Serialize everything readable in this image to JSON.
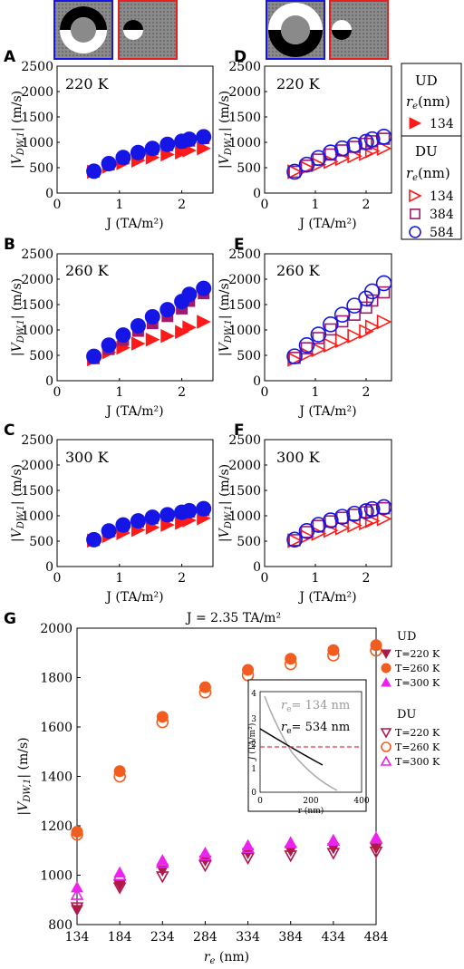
{
  "figure": {
    "panels": [
      {
        "letter": "A",
        "temp": "220 K"
      },
      {
        "letter": "B",
        "temp": "260 K"
      },
      {
        "letter": "C",
        "temp": "300 K"
      },
      {
        "letter": "D",
        "temp": "220 K"
      },
      {
        "letter": "E",
        "temp": "260 K"
      },
      {
        "letter": "F",
        "temp": "300 K"
      },
      {
        "letter": "G"
      }
    ],
    "small_xlabel": "J (TA/m²)",
    "small_ylabel": "|V_DW,1| (m/s)",
    "small_yticks": [
      "0",
      "500",
      "1000",
      "1500",
      "2000",
      "2500"
    ],
    "small_xticks": [
      "0",
      "1",
      "2"
    ],
    "legend_ud": {
      "title": "UD",
      "subtitle": "r_e(nm)",
      "items": [
        "134",
        "384",
        "584"
      ]
    },
    "legend_du": {
      "title": "DU",
      "subtitle": "r_e(nm)",
      "items": [
        "134",
        "384",
        "584"
      ]
    },
    "g_title": "J = 2.35 TA/m²",
    "g_xlabel": "r_e (nm)",
    "g_ylabel": "|V_DW,1| (m/s)",
    "g_legend_ud": {
      "title": "UD",
      "items": [
        "T=220 K",
        "T=260 K",
        "T=300 K"
      ]
    },
    "g_legend_du": {
      "title": "DU",
      "items": [
        "T=220 K",
        "T=260 K",
        "T=300 K"
      ]
    },
    "inset": {
      "line1": "r_e= 134 nm",
      "line2": "r_e= 534 nm",
      "xlabel": "r (nm)",
      "ylabel": "J (TA/m²)"
    }
  },
  "colors": {
    "red": "#ff1a1a",
    "purple": "#a01a6a",
    "blue": "#1515e6",
    "darkred": "#b0184a",
    "orange": "#f25c1f",
    "magenta": "#ee22ee",
    "grey": "#aaaaaa"
  },
  "chart_data": [
    {
      "type": "scatter",
      "panel": "A",
      "x": [
        0.59,
        0.83,
        1.06,
        1.3,
        1.53,
        1.77,
        2.0,
        2.12,
        2.35
      ],
      "xlim": [
        0,
        2.5
      ],
      "ylim": [
        0,
        2500
      ],
      "series": [
        {
          "name": "134",
          "values": [
            420,
            520,
            590,
            640,
            700,
            760,
            800,
            840,
            880
          ]
        },
        {
          "name": "384",
          "values": [
            420,
            560,
            680,
            780,
            860,
            940,
            990,
            1030,
            1080
          ]
        },
        {
          "name": "584",
          "values": [
            430,
            580,
            700,
            800,
            880,
            960,
            1020,
            1060,
            1110
          ]
        }
      ]
    },
    {
      "type": "scatter",
      "panel": "B",
      "x": [
        0.59,
        0.83,
        1.06,
        1.3,
        1.53,
        1.77,
        2.0,
        2.12,
        2.35
      ],
      "xlim": [
        0,
        2.5
      ],
      "ylim": [
        0,
        2500
      ],
      "series": [
        {
          "name": "134",
          "values": [
            420,
            560,
            650,
            730,
            810,
            880,
            960,
            1050,
            1160
          ]
        },
        {
          "name": "384",
          "values": [
            440,
            620,
            800,
            980,
            1130,
            1270,
            1420,
            1570,
            1720
          ]
        },
        {
          "name": "584",
          "values": [
            480,
            700,
            900,
            1080,
            1260,
            1400,
            1560,
            1700,
            1820
          ]
        }
      ]
    },
    {
      "type": "scatter",
      "panel": "C",
      "x": [
        0.59,
        0.83,
        1.06,
        1.3,
        1.53,
        1.77,
        2.0,
        2.12,
        2.35
      ],
      "xlim": [
        0,
        2.5
      ],
      "ylim": [
        0,
        2500
      ],
      "series": [
        {
          "name": "134",
          "values": [
            510,
            600,
            660,
            720,
            770,
            820,
            860,
            910,
            950
          ]
        },
        {
          "name": "384",
          "values": [
            520,
            690,
            800,
            880,
            950,
            1000,
            1050,
            1080,
            1110
          ]
        },
        {
          "name": "584",
          "values": [
            530,
            700,
            820,
            900,
            970,
            1020,
            1070,
            1100,
            1140
          ]
        }
      ]
    },
    {
      "type": "scatter",
      "panel": "D",
      "x": [
        0.59,
        0.83,
        1.06,
        1.3,
        1.53,
        1.77,
        2.0,
        2.12,
        2.35
      ],
      "xlim": [
        0,
        2.5
      ],
      "ylim": [
        0,
        2500
      ],
      "series": [
        {
          "name": "134",
          "values": [
            420,
            500,
            560,
            620,
            680,
            730,
            780,
            830,
            880
          ]
        },
        {
          "name": "384",
          "values": [
            420,
            540,
            660,
            760,
            840,
            910,
            970,
            1020,
            1070
          ]
        },
        {
          "name": "584",
          "values": [
            420,
            560,
            690,
            800,
            880,
            950,
            1010,
            1060,
            1110
          ]
        }
      ]
    },
    {
      "type": "scatter",
      "panel": "E",
      "x": [
        0.59,
        0.83,
        1.06,
        1.3,
        1.53,
        1.77,
        2.0,
        2.12,
        2.35
      ],
      "xlim": [
        0,
        2.5
      ],
      "ylim": [
        0,
        2500
      ],
      "series": [
        {
          "name": "134",
          "values": [
            420,
            520,
            610,
            700,
            790,
            880,
            970,
            1060,
            1160
          ]
        },
        {
          "name": "384",
          "values": [
            450,
            640,
            840,
            1010,
            1170,
            1300,
            1440,
            1580,
            1740
          ]
        },
        {
          "name": "584",
          "values": [
            480,
            700,
            910,
            1110,
            1300,
            1480,
            1620,
            1760,
            1920
          ]
        }
      ]
    },
    {
      "type": "scatter",
      "panel": "F",
      "x": [
        0.59,
        0.83,
        1.06,
        1.3,
        1.53,
        1.77,
        2.0,
        2.12,
        2.35
      ],
      "xlim": [
        0,
        2.5
      ],
      "ylim": [
        0,
        2500
      ],
      "series": [
        {
          "name": "134",
          "values": [
            510,
            590,
            650,
            710,
            760,
            810,
            860,
            900,
            940
          ]
        },
        {
          "name": "384",
          "values": [
            520,
            680,
            800,
            890,
            960,
            1020,
            1070,
            1110,
            1150
          ]
        },
        {
          "name": "584",
          "values": [
            530,
            700,
            820,
            910,
            980,
            1040,
            1090,
            1130,
            1170
          ]
        }
      ]
    },
    {
      "type": "scatter",
      "panel": "G",
      "x": [
        134,
        184,
        234,
        284,
        334,
        384,
        434,
        484
      ],
      "xlim": [
        134,
        484
      ],
      "ylim": [
        800,
        2000
      ],
      "series": [
        {
          "name": "UD T=220 K",
          "values": [
            860,
            960,
            1020,
            1060,
            1090,
            1100,
            1110,
            1110
          ]
        },
        {
          "name": "UD T=260 K",
          "values": [
            1165,
            1410,
            1630,
            1750,
            1820,
            1865,
            1900,
            1920
          ]
        },
        {
          "name": "UD T=300 K",
          "values": [
            950,
            1010,
            1060,
            1090,
            1120,
            1130,
            1140,
            1150
          ]
        },
        {
          "name": "DU T=220 K",
          "values": [
            870,
            950,
            995,
            1040,
            1070,
            1080,
            1090,
            1095
          ]
        },
        {
          "name": "DU T=260 K",
          "values": [
            1165,
            1400,
            1620,
            1740,
            1810,
            1855,
            1890,
            1910
          ]
        },
        {
          "name": "DU T=300 K",
          "values": [
            920,
            1000,
            1050,
            1080,
            1110,
            1130,
            1140,
            1150
          ]
        }
      ]
    }
  ]
}
